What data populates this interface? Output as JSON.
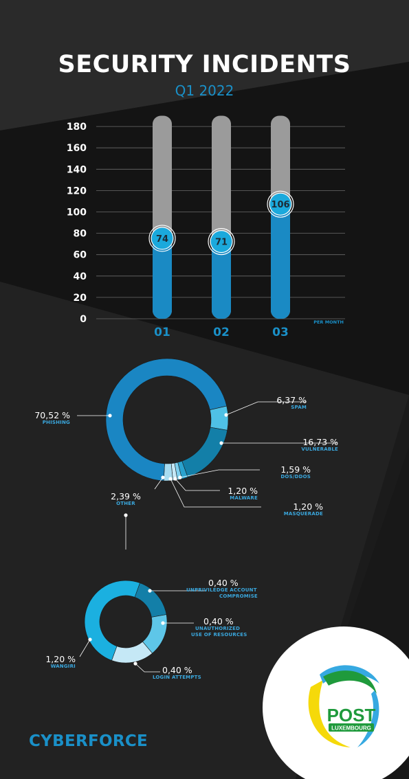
{
  "header": {
    "title": "SECURITY INCIDENTS",
    "subtitle": "Q1 2022"
  },
  "chart_data": [
    {
      "type": "bar",
      "categories": [
        "01",
        "02",
        "03"
      ],
      "values": [
        74,
        71,
        106
      ],
      "background_max": 190,
      "ylim": [
        0,
        190
      ],
      "yticks": [
        0,
        20,
        40,
        60,
        80,
        100,
        120,
        140,
        160,
        180
      ],
      "xlabel": "",
      "ylabel": "",
      "unit_label": "PER MONTH",
      "grid": true,
      "colors": {
        "bar": "#1a8ac4",
        "track": "#9b9b9b",
        "value_circle": "#1ba9dc"
      }
    },
    {
      "type": "pie",
      "style": "donut",
      "slices": [
        {
          "label": "SPAM",
          "value": 6.37,
          "text": "6,37 %",
          "color": "#4fc1e6"
        },
        {
          "label": "VULNERABLE",
          "value": 16.73,
          "text": "16,73 %",
          "color": "#137fa8"
        },
        {
          "label": "DOS/DDOS",
          "value": 1.59,
          "text": "1,59 %",
          "color": "#2aa3cf"
        },
        {
          "label": "MALWARE",
          "value": 1.2,
          "text": "1,20 %",
          "color": "#7fd0ef"
        },
        {
          "label": "MASQUERADE",
          "value": 1.2,
          "text": "1,20 %",
          "color": "#c5e8f6"
        },
        {
          "label": "OTHER",
          "value": 2.39,
          "text": "2,39 %",
          "color": "#a7dcf1"
        },
        {
          "label": "PHISHING",
          "value": 70.52,
          "text": "70,52 %",
          "color": "#1a86c3"
        }
      ]
    },
    {
      "type": "pie",
      "style": "donut",
      "slices": [
        {
          "label": "UNPRIVILEDGE ACCOUNT COMPROMISE",
          "value": 0.4,
          "text": "0,40 %",
          "color": "#137fa8"
        },
        {
          "label": "UNAUTHORIZED USE OF RESOURCES",
          "value": 0.4,
          "text": "0,40 %",
          "color": "#5ec6e8"
        },
        {
          "label": "LOGIN ATTEMPTS",
          "value": 0.4,
          "text": "0,40 %",
          "color": "#c5e8f6"
        },
        {
          "label": "WANGIRI",
          "value": 1.2,
          "text": "1,20 %",
          "color": "#1bb0e0"
        }
      ]
    }
  ],
  "labels": {
    "spam": {
      "pct": "6,37 %",
      "cat": "SPAM"
    },
    "vulnerable": {
      "pct": "16,73 %",
      "cat": "VULNERABLE"
    },
    "dos": {
      "pct": "1,59 %",
      "cat": "DOS/DDOS"
    },
    "malware": {
      "pct": "1,20 %",
      "cat": "MALWARE"
    },
    "masquerade": {
      "pct": "1,20 %",
      "cat": "MASQUERADE"
    },
    "other": {
      "pct": "2,39 %",
      "cat": "OTHER"
    },
    "phishing": {
      "pct": "70,52 %",
      "cat": "PHISHING"
    },
    "unpriv": {
      "pct": "0,40 %",
      "cat1": "UNPRIVILEDGE ACCOUNT",
      "cat2": "COMPROMISE"
    },
    "unauth": {
      "pct": "0,40 %",
      "cat1": "UNAUTHORIZED",
      "cat2": "USE OF RESOURCES"
    },
    "login": {
      "pct": "0,40 %",
      "cat": "LOGIN ATTEMPTS"
    },
    "wangiri": {
      "pct": "1,20 %",
      "cat": "WANGIRI"
    }
  },
  "footer": {
    "brand": "CYBERFORCE",
    "logo_word": "POST",
    "logo_sub": "LUXEMBOURG",
    "colors": {
      "logo_green": "#1f9a3c",
      "logo_yellow": "#f5d90a",
      "logo_blue": "#36a9e1"
    }
  }
}
